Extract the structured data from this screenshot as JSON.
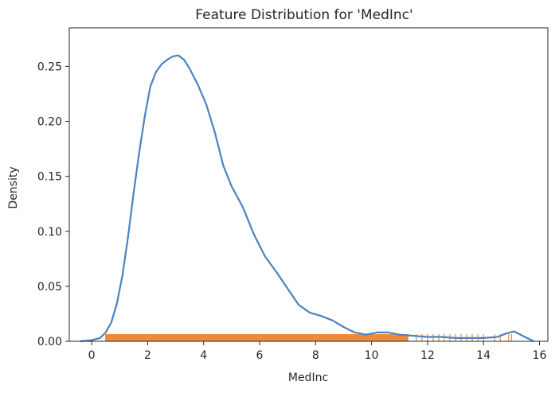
{
  "chart_data": {
    "type": "line",
    "title": "Feature Distribution for 'MedInc'",
    "xlabel": "MedInc",
    "ylabel": "Density",
    "xlim": [
      -0.8,
      16.3
    ],
    "ylim": [
      0,
      0.285
    ],
    "xticks": [
      0,
      2,
      4,
      6,
      8,
      10,
      12,
      14,
      16
    ],
    "yticks": [
      0.0,
      0.05,
      0.1,
      0.15,
      0.2,
      0.25
    ],
    "ytick_labels": [
      "0.00",
      "0.05",
      "0.10",
      "0.15",
      "0.20",
      "0.25"
    ],
    "grid": false,
    "series": [
      {
        "kind": "kde",
        "color": "#4c82bf",
        "x": [
          -0.4,
          0.0,
          0.3,
          0.5,
          0.7,
          0.9,
          1.1,
          1.3,
          1.5,
          1.7,
          1.9,
          2.1,
          2.3,
          2.5,
          2.7,
          2.9,
          3.1,
          3.3,
          3.5,
          3.8,
          4.1,
          4.4,
          4.7,
          5.0,
          5.4,
          5.8,
          6.2,
          6.6,
          7.0,
          7.4,
          7.8,
          8.2,
          8.6,
          9.0,
          9.4,
          9.8,
          10.2,
          10.6,
          11.0,
          11.5,
          12.0,
          12.5,
          13.0,
          13.5,
          14.0,
          14.5,
          14.8,
          15.1,
          15.4,
          15.8
        ],
        "y": [
          0.0,
          0.001,
          0.003,
          0.008,
          0.017,
          0.034,
          0.06,
          0.095,
          0.135,
          0.172,
          0.205,
          0.232,
          0.245,
          0.252,
          0.256,
          0.259,
          0.26,
          0.256,
          0.248,
          0.233,
          0.215,
          0.19,
          0.16,
          0.141,
          0.122,
          0.097,
          0.077,
          0.063,
          0.048,
          0.033,
          0.026,
          0.023,
          0.019,
          0.013,
          0.008,
          0.006,
          0.008,
          0.008,
          0.006,
          0.005,
          0.004,
          0.004,
          0.003,
          0.003,
          0.003,
          0.004,
          0.007,
          0.009,
          0.005,
          0.0
        ]
      },
      {
        "kind": "rug",
        "color": "#f08a3b",
        "x": [
          0.5,
          0.8,
          1.1,
          1.4,
          1.7,
          2.0,
          2.3,
          2.6,
          2.9,
          3.2,
          3.5,
          3.8,
          4.1,
          4.4,
          4.7,
          5.0,
          5.3,
          5.6,
          5.9,
          6.2,
          6.5,
          6.8,
          7.1,
          7.4,
          7.7,
          8.0,
          8.3,
          8.6,
          8.9,
          9.2,
          9.5,
          9.8,
          10.1,
          10.4,
          10.7,
          11.0,
          11.3,
          11.6,
          11.8,
          12.0,
          12.2,
          12.4,
          12.6,
          12.8,
          13.0,
          13.2,
          13.4,
          13.6,
          13.8,
          14.0,
          14.4,
          14.6,
          14.9,
          15.0
        ]
      }
    ]
  }
}
